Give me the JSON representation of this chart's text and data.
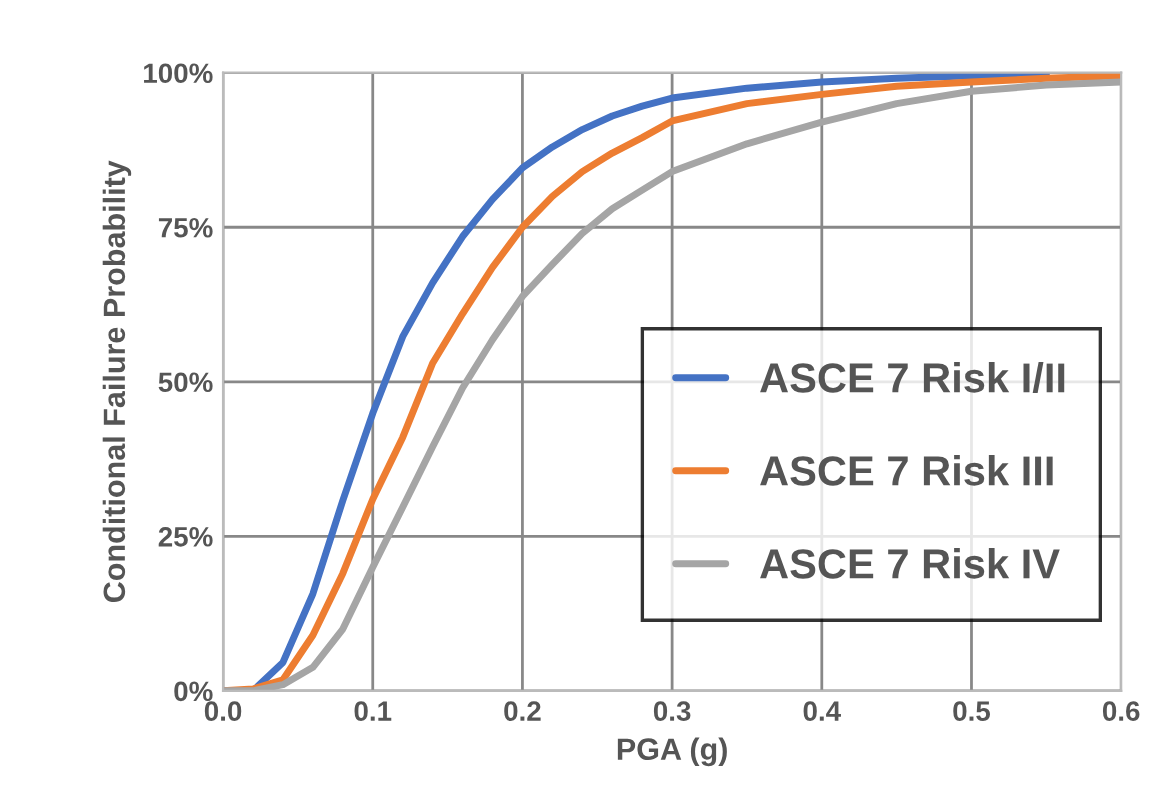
{
  "chart_data": {
    "type": "line",
    "xlabel": "PGA (g)",
    "ylabel": "Conditional Failure Probability",
    "x": [
      0,
      0.02,
      0.04,
      0.06,
      0.08,
      0.1,
      0.12,
      0.14,
      0.16,
      0.18,
      0.2,
      0.22,
      0.24,
      0.26,
      0.28,
      0.3,
      0.35,
      0.4,
      0.45,
      0.5,
      0.55,
      0.6
    ],
    "series": [
      {
        "name": "ASCE 7 Risk I/II",
        "color": "#4472c4",
        "values": [
          0,
          0,
          4.6,
          15.7,
          30.8,
          44.9,
          57.3,
          66,
          73.5,
          79.5,
          84.6,
          88,
          90.8,
          93,
          94.6,
          95.9,
          97.5,
          98.5,
          99.1,
          99.5,
          99.7,
          null
        ]
      },
      {
        "name": "ASCE 7 Risk III",
        "color": "#ed7d31",
        "values": [
          0,
          0.3,
          1.8,
          9,
          19,
          31,
          41,
          53,
          61,
          68.5,
          75,
          80,
          84,
          87,
          89.5,
          92.2,
          95,
          96.5,
          97.8,
          98.5,
          99.1,
          99.5
        ]
      },
      {
        "name": "ASCE 7 Risk IV",
        "color": "#a5a5a5",
        "values": [
          0,
          0,
          1,
          3.8,
          10,
          20,
          29.7,
          39.5,
          49,
          56.8,
          63.8,
          69,
          74,
          78,
          81,
          84,
          88.5,
          92,
          95,
          97,
          98,
          98.5
        ]
      }
    ],
    "xlim": [
      0,
      0.6
    ],
    "xticks": [
      {
        "value": 0,
        "label": "0.0"
      },
      0.1,
      0.2,
      0.3,
      0.4,
      0.5,
      0.6
    ],
    "ylim": [
      0,
      100
    ],
    "yticks": [
      {
        "value": 0,
        "label": "0%"
      },
      {
        "value": 25,
        "label": "25%"
      },
      {
        "value": 50,
        "label": "50%"
      },
      {
        "value": 75,
        "label": "75%"
      },
      {
        "value": 100,
        "label": "100%"
      }
    ],
    "grid": true,
    "legend": "right",
    "marker": "none",
    "line_style": "solid"
  }
}
